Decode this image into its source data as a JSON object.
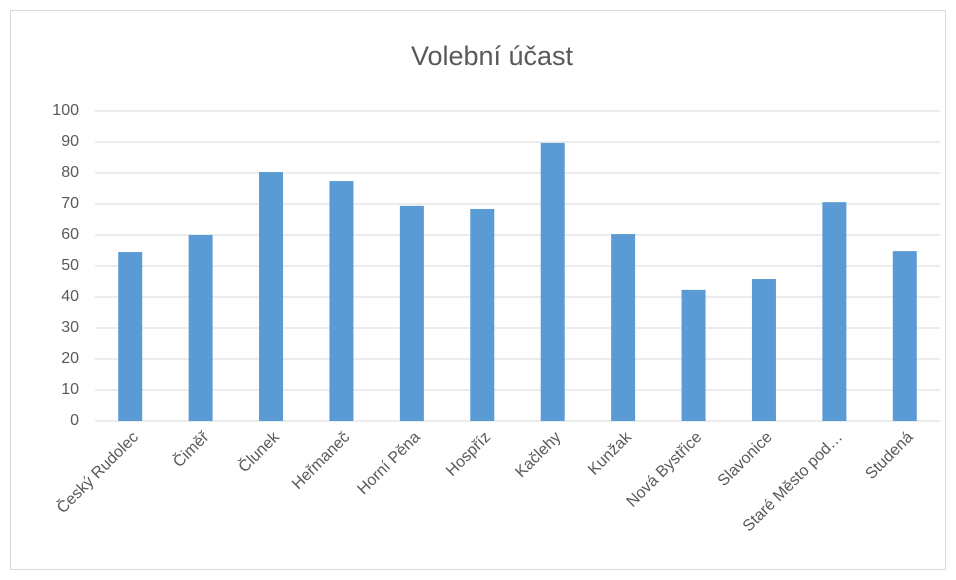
{
  "chart_data": {
    "type": "bar",
    "title": "Volební účast",
    "categories": [
      "Český Rudolec",
      "Čiměř",
      "Člunek",
      "Heřmaneč",
      "Horní Pěna",
      "Hospříz",
      "Kačlehy",
      "Kunžak",
      "Nová Bystřice",
      "Slavonice",
      "Staré Město pod…",
      "Studená"
    ],
    "values": [
      54.5,
      60,
      80.3,
      77.4,
      69.4,
      68.4,
      89.7,
      60.3,
      42.3,
      45.8,
      70.6,
      54.8
    ],
    "color": "#5b9bd5",
    "ylim": [
      0,
      100
    ],
    "yticks": [
      0,
      10,
      20,
      30,
      40,
      50,
      60,
      70,
      80,
      90,
      100
    ],
    "grid": true
  }
}
